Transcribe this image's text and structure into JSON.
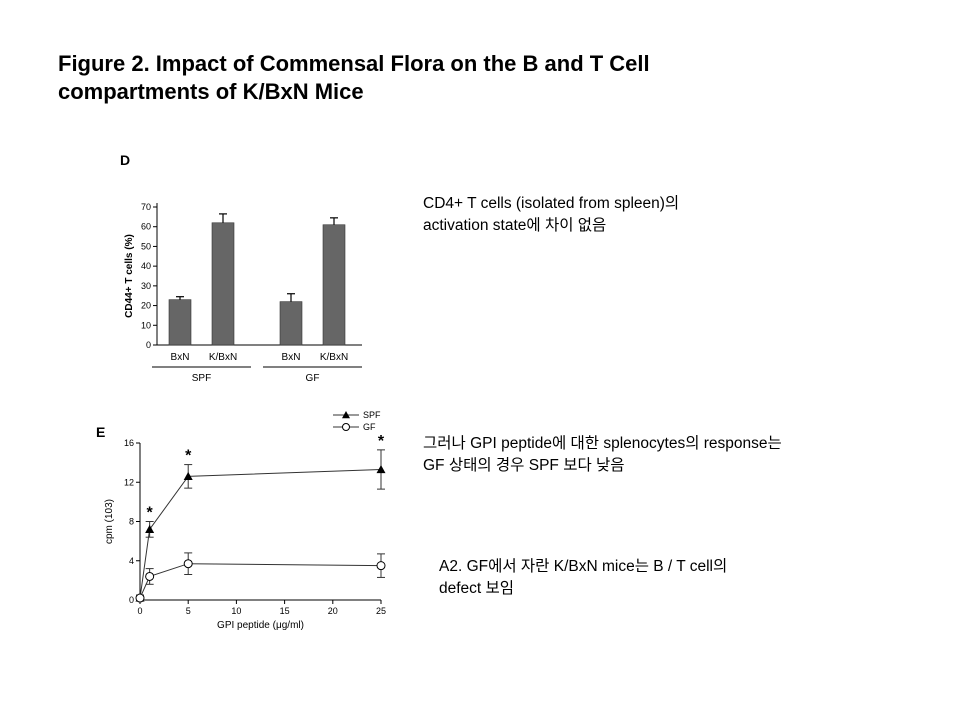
{
  "title": {
    "line1": "Figure 2. Impact of Commensal Flora on the B and T Cell",
    "line2": "compartments of K/BxN Mice"
  },
  "notes": [
    {
      "lines": [
        "CD4+ T cells (isolated from spleen)의",
        "activation state에 차이 없음"
      ]
    },
    {
      "lines": [
        "그러나 GPI peptide에 대한 splenocytes의 response는",
        "GF 상태의 경우 SPF 보다 낮음"
      ]
    },
    {
      "lines": [
        "A2. GF에서 자란 K/BxN mice는 B / T cell의",
        "defect 보임"
      ]
    }
  ],
  "chart_data": [
    {
      "panel_label": "D",
      "type": "bar",
      "categories": [
        "BxN",
        "K/BxN",
        "BxN",
        "K/BxN"
      ],
      "groups": [
        {
          "label": "SPF",
          "categories": [
            0,
            1
          ]
        },
        {
          "label": "GF",
          "categories": [
            2,
            3
          ]
        }
      ],
      "values": [
        23,
        62,
        22,
        61
      ],
      "errors": [
        1.5,
        4.5,
        4,
        3.5
      ],
      "ylabel": "CD44+ T cells (%)",
      "ylim": [
        0,
        70
      ],
      "yticks": [
        0,
        10,
        20,
        30,
        40,
        50,
        60,
        70
      ],
      "bar_color": "#666666"
    },
    {
      "panel_label": "E",
      "type": "line",
      "x": [
        0,
        1,
        5,
        25
      ],
      "series": [
        {
          "name": "SPF",
          "marker": "filled-triangle",
          "values": [
            0.2,
            7.2,
            12.6,
            13.3
          ],
          "errors": [
            0.3,
            0.8,
            1.2,
            2.0
          ]
        },
        {
          "name": "GF",
          "marker": "open-circle",
          "values": [
            0.2,
            2.4,
            3.7,
            3.5
          ],
          "errors": [
            0.3,
            0.8,
            1.1,
            1.2
          ]
        }
      ],
      "significance": [
        {
          "x": 1,
          "label": "*"
        },
        {
          "x": 5,
          "label": "*"
        },
        {
          "x": 25,
          "label": "*"
        }
      ],
      "xlabel": "GPI peptide (μg/ml)",
      "ylabel": "cpm (103)",
      "xlim": [
        0,
        25
      ],
      "ylim": [
        0,
        16
      ],
      "xticks": [
        0,
        5,
        10,
        15,
        20,
        25
      ],
      "yticks": [
        0,
        4,
        8,
        12,
        16
      ],
      "legend": "top-right"
    }
  ]
}
